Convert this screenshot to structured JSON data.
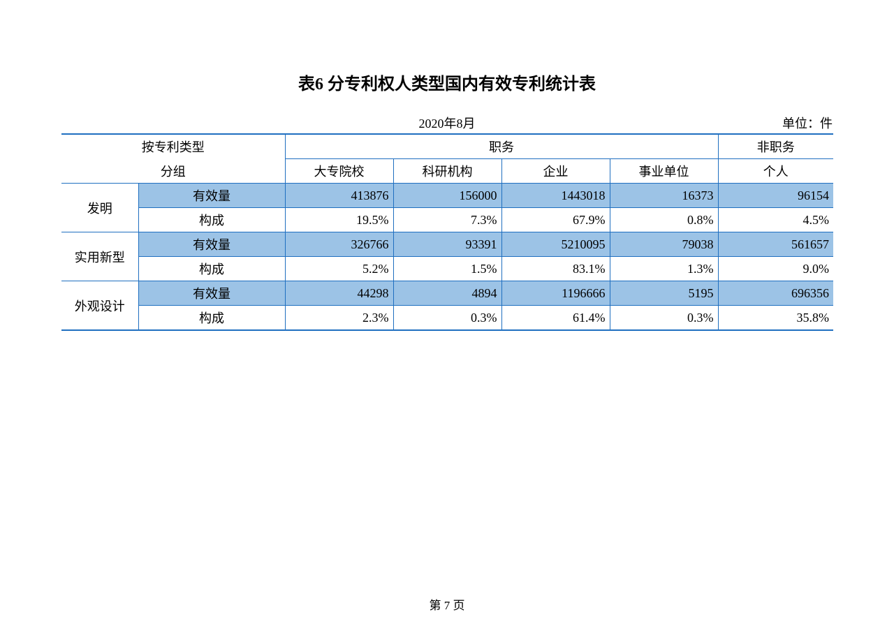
{
  "title": "表6  分专利权人类型国内有效专利统计表",
  "date": "2020年8月",
  "unit": "单位：件",
  "header": {
    "group_top": "按专利类型",
    "group_bottom": "分组",
    "duty": "职务",
    "nonduty": "非职务",
    "col1": "大专院校",
    "col2": "科研机构",
    "col3": "企业",
    "col4": "事业单位",
    "col5": "个人"
  },
  "row_labels": {
    "invention": "发明",
    "utility": "实用新型",
    "design": "外观设计",
    "valid_qty": "有效量",
    "composition": "构成"
  },
  "rows": {
    "invention_qty": [
      "413876",
      "156000",
      "1443018",
      "16373",
      "96154"
    ],
    "invention_pct": [
      "19.5%",
      "7.3%",
      "67.9%",
      "0.8%",
      "4.5%"
    ],
    "utility_qty": [
      "326766",
      "93391",
      "5210095",
      "79038",
      "561657"
    ],
    "utility_pct": [
      "5.2%",
      "1.5%",
      "83.1%",
      "1.3%",
      "9.0%"
    ],
    "design_qty": [
      "44298",
      "4894",
      "1196666",
      "5195",
      "696356"
    ],
    "design_pct": [
      "2.3%",
      "0.3%",
      "61.4%",
      "0.3%",
      "35.8%"
    ]
  },
  "footer": "第  7  页",
  "colors": {
    "border": "#1f6fc0",
    "shade": "#9cc3e6",
    "background": "#ffffff",
    "text": "#000000"
  }
}
